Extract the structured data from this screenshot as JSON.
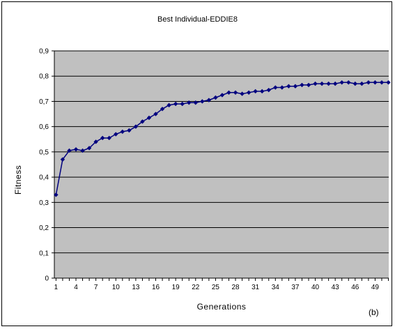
{
  "chart_data": {
    "type": "line",
    "title": "Best Individual-EDDIE8",
    "xlabel": "Generations",
    "ylabel": "Fitness",
    "panel_label": "(b)",
    "ylim": [
      0,
      0.9
    ],
    "yticks": [
      "0",
      "0,1",
      "0,2",
      "0,3",
      "0,4",
      "0,5",
      "0,6",
      "0,7",
      "0,8",
      "0,9"
    ],
    "xlim": [
      1,
      51
    ],
    "xticks": [
      1,
      4,
      7,
      10,
      13,
      16,
      19,
      22,
      25,
      28,
      31,
      34,
      37,
      40,
      43,
      46,
      49
    ],
    "grid": true,
    "series": [
      {
        "color": "#00007f",
        "x": [
          1,
          2,
          3,
          4,
          5,
          6,
          7,
          8,
          9,
          10,
          11,
          12,
          13,
          14,
          15,
          16,
          17,
          18,
          19,
          20,
          21,
          22,
          23,
          24,
          25,
          26,
          27,
          28,
          29,
          30,
          31,
          32,
          33,
          34,
          35,
          36,
          37,
          38,
          39,
          40,
          41,
          42,
          43,
          44,
          45,
          46,
          47,
          48,
          49,
          50,
          51
        ],
        "values": [
          0.33,
          0.47,
          0.505,
          0.51,
          0.505,
          0.515,
          0.54,
          0.555,
          0.555,
          0.57,
          0.58,
          0.585,
          0.6,
          0.62,
          0.635,
          0.65,
          0.67,
          0.685,
          0.69,
          0.69,
          0.695,
          0.695,
          0.7,
          0.705,
          0.715,
          0.725,
          0.735,
          0.735,
          0.73,
          0.735,
          0.74,
          0.74,
          0.745,
          0.755,
          0.755,
          0.76,
          0.76,
          0.765,
          0.765,
          0.77,
          0.77,
          0.77,
          0.77,
          0.775,
          0.775,
          0.77,
          0.77,
          0.775,
          0.775,
          0.775,
          0.775
        ]
      }
    ]
  }
}
